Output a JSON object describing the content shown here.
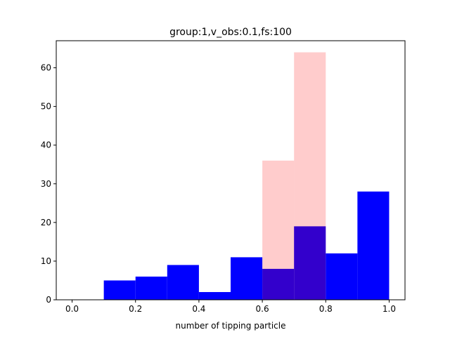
{
  "chart_data": {
    "type": "bar",
    "title": "group:1,v_obs:0.1,fs:100",
    "xlabel": "number of tipping particle",
    "ylabel": "",
    "xlim": [
      -0.05,
      1.05
    ],
    "ylim": [
      0,
      67
    ],
    "xticks": [
      "0.0",
      "0.2",
      "0.4",
      "0.6",
      "0.8",
      "1.0"
    ],
    "yticks": [
      "0",
      "10",
      "20",
      "30",
      "40",
      "50",
      "60"
    ],
    "grid": false,
    "series": [
      {
        "color": "#0000ff",
        "alpha": 1.0,
        "bins": [
          [
            0.1,
            0.2
          ],
          [
            0.2,
            0.3
          ],
          [
            0.3,
            0.4
          ],
          [
            0.4,
            0.5
          ],
          [
            0.5,
            0.6
          ],
          [
            0.6,
            0.7
          ],
          [
            0.7,
            0.8
          ],
          [
            0.8,
            0.9
          ],
          [
            0.9,
            1.0
          ]
        ],
        "values": [
          5,
          6,
          9,
          2,
          11,
          8,
          19,
          12,
          28
        ]
      },
      {
        "color": "#ff0000",
        "alpha": 0.2,
        "bins": [
          [
            0.6,
            0.7
          ],
          [
            0.7,
            0.8
          ]
        ],
        "values": [
          36,
          64
        ]
      }
    ]
  }
}
